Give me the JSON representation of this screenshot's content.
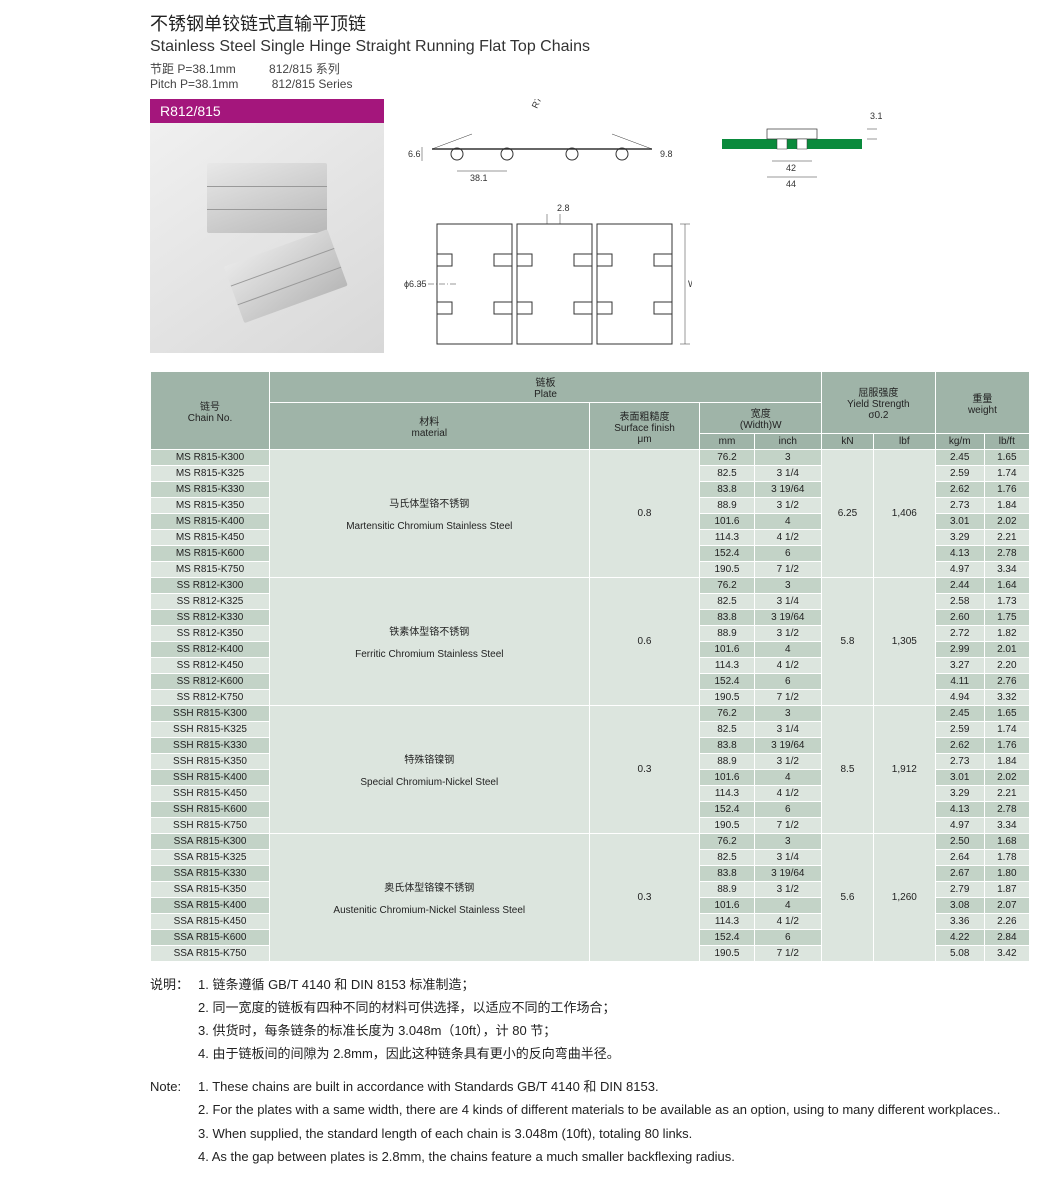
{
  "title_cn": "不锈钢单铰链式直输平顶链",
  "title_en": "Stainless Steel Single Hinge Straight Running Flat Top Chains",
  "subtitle_cn_1": "节距 P=38.1mm",
  "subtitle_cn_2": "812/815 系列",
  "subtitle_en_1": "Pitch P=38.1mm",
  "subtitle_en_2": "812/815 Series",
  "prod_header": "R812/815",
  "dims": {
    "r": "R75max",
    "h": "6.6",
    "p": "38.1",
    "h2": "9.8",
    "gap": "2.8",
    "dia": "ϕ6.35",
    "w": "W",
    "side_t": "3.1",
    "side_w1": "42",
    "side_w2": "44"
  },
  "headers": {
    "chain_cn": "链号",
    "chain_en": "Chain No.",
    "plate_cn": "链板",
    "plate_en": "Plate",
    "mat_cn": "材料",
    "mat_en": "material",
    "surf_cn": "表面粗糙度",
    "surf_en": "Surface finish",
    "surf_u": "μm",
    "width_cn": "宽度",
    "width_en": "(Width)W",
    "mm": "mm",
    "inch": "inch",
    "yield_cn": "屈服强度",
    "yield_en": "Yield Strength",
    "yield_s": "σ0.2",
    "kn": "kN",
    "lbf": "lbf",
    "weight_cn": "重量",
    "weight_en": "weight",
    "kgm": "kg/m",
    "lbft": "lb/ft"
  },
  "groups": [
    {
      "mat_cn": "马氏体型铬不锈钢",
      "mat_en": "Martensitic Chromium Stainless Steel",
      "surf": "0.8",
      "kn": "6.25",
      "lbf": "1,406",
      "rows": [
        {
          "no": "MS R815-K300",
          "mm": "76.2",
          "in": "3",
          "kg": "2.45",
          "lb": "1.65"
        },
        {
          "no": "MS R815-K325",
          "mm": "82.5",
          "in": "3 1/4",
          "kg": "2.59",
          "lb": "1.74"
        },
        {
          "no": "MS R815-K330",
          "mm": "83.8",
          "in": "3 19/64",
          "kg": "2.62",
          "lb": "1.76"
        },
        {
          "no": "MS R815-K350",
          "mm": "88.9",
          "in": "3 1/2",
          "kg": "2.73",
          "lb": "1.84"
        },
        {
          "no": "MS  R815-K400",
          "mm": "101.6",
          "in": "4",
          "kg": "3.01",
          "lb": "2.02"
        },
        {
          "no": "MS R815-K450",
          "mm": "114.3",
          "in": "4 1/2",
          "kg": "3.29",
          "lb": "2.21"
        },
        {
          "no": "MS R815-K600",
          "mm": "152.4",
          "in": "6",
          "kg": "4.13",
          "lb": "2.78"
        },
        {
          "no": "MS R815-K750",
          "mm": "190.5",
          "in": "7 1/2",
          "kg": "4.97",
          "lb": "3.34"
        }
      ]
    },
    {
      "mat_cn": "铁素体型铬不锈钢",
      "mat_en": "Ferritic Chromium Stainless Steel",
      "surf": "0.6",
      "kn": "5.8",
      "lbf": "1,305",
      "rows": [
        {
          "no": "SS R812-K300",
          "mm": "76.2",
          "in": "3",
          "kg": "2.44",
          "lb": "1.64"
        },
        {
          "no": "SS R812-K325",
          "mm": "82.5",
          "in": "3 1/4",
          "kg": "2.58",
          "lb": "1.73"
        },
        {
          "no": "SS R812-K330",
          "mm": "83.8",
          "in": "3 19/64",
          "kg": "2.60",
          "lb": "1.75"
        },
        {
          "no": "SS R812-K350",
          "mm": "88.9",
          "in": "3 1/2",
          "kg": "2.72",
          "lb": "1.82"
        },
        {
          "no": "SS R812-K400",
          "mm": "101.6",
          "in": "4",
          "kg": "2.99",
          "lb": "2.01"
        },
        {
          "no": "SS R812-K450",
          "mm": "114.3",
          "in": "4 1/2",
          "kg": "3.27",
          "lb": "2.20"
        },
        {
          "no": "SS R812-K600",
          "mm": "152.4",
          "in": "6",
          "kg": "4.11",
          "lb": "2.76"
        },
        {
          "no": "SS R812-K750",
          "mm": "190.5",
          "in": "7 1/2",
          "kg": "4.94",
          "lb": "3.32"
        }
      ]
    },
    {
      "mat_cn": "特殊铬镍钢",
      "mat_en": "Special Chromium-Nickel Steel",
      "surf": "0.3",
      "kn": "8.5",
      "lbf": "1,912",
      "rows": [
        {
          "no": "SSH R815-K300",
          "mm": "76.2",
          "in": "3",
          "kg": "2.45",
          "lb": "1.65"
        },
        {
          "no": "SSH R815-K325",
          "mm": "82.5",
          "in": "3 1/4",
          "kg": "2.59",
          "lb": "1.74"
        },
        {
          "no": "SSH R815-K330",
          "mm": "83.8",
          "in": "3 19/64",
          "kg": "2.62",
          "lb": "1.76"
        },
        {
          "no": "SSH R815-K350",
          "mm": "88.9",
          "in": "3 1/2",
          "kg": "2.73",
          "lb": "1.84"
        },
        {
          "no": "SSH R815-K400",
          "mm": "101.6",
          "in": "4",
          "kg": "3.01",
          "lb": "2.02"
        },
        {
          "no": "SSH R815-K450",
          "mm": "114.3",
          "in": "4 1/2",
          "kg": "3.29",
          "lb": "2.21"
        },
        {
          "no": "SSH R815-K600",
          "mm": "152.4",
          "in": "6",
          "kg": "4.13",
          "lb": "2.78"
        },
        {
          "no": "SSH R815-K750",
          "mm": "190.5",
          "in": "7 1/2",
          "kg": "4.97",
          "lb": "3.34"
        }
      ]
    },
    {
      "mat_cn": "奥氏体型铬镍不锈钢",
      "mat_en": "Austenitic Chromium-Nickel Stainless Steel",
      "surf": "0.3",
      "kn": "5.6",
      "lbf": "1,260",
      "rows": [
        {
          "no": "SSA R815-K300",
          "mm": "76.2",
          "in": "3",
          "kg": "2.50",
          "lb": "1.68"
        },
        {
          "no": "SSA R815-K325",
          "mm": "82.5",
          "in": "3 1/4",
          "kg": "2.64",
          "lb": "1.78"
        },
        {
          "no": "SSA R815-K330",
          "mm": "83.8",
          "in": "3 19/64",
          "kg": "2.67",
          "lb": "1.80"
        },
        {
          "no": "SSA R815-K350",
          "mm": "88.9",
          "in": "3 1/2",
          "kg": "2.79",
          "lb": "1.87"
        },
        {
          "no": "SSA R815-K400",
          "mm": "101.6",
          "in": "4",
          "kg": "3.08",
          "lb": "2.07"
        },
        {
          "no": "SSA R815-K450",
          "mm": "114.3",
          "in": "4 1/2",
          "kg": "3.36",
          "lb": "2.26"
        },
        {
          "no": "SSA R815-K600",
          "mm": "152.4",
          "in": "6",
          "kg": "4.22",
          "lb": "2.84"
        },
        {
          "no": "SSA R815-K750",
          "mm": "190.5",
          "in": "7 1/2",
          "kg": "5.08",
          "lb": "3.42"
        }
      ]
    }
  ],
  "notes_cn_lbl": "说明：",
  "notes_cn": [
    "1. 链条遵循 GB/T 4140 和 DIN 8153 标准制造；",
    "2. 同一宽度的链板有四种不同的材料可供选择，以适应不同的工作场合；",
    "3. 供货时，每条链条的标准长度为 3.048m（10ft），计 80 节；",
    "4. 由于链板间的间隙为 2.8mm，因此这种链条具有更小的反向弯曲半径。"
  ],
  "notes_en_lbl": "Note:",
  "notes_en": [
    "1. These chains are built in accordance with Standards GB/T 4140 和 DIN 8153.",
    "2. For the plates with a same width, there are 4 kinds of different materials to be available as an option, using to many different workplaces..",
    "3. When supplied, the standard length of each chain is 3.048m (10ft), totaling 80 links.",
    "4. As the gap between plates is 2.8mm, the chains feature a much smaller backflexing radius."
  ],
  "colors": {
    "header_bg": "#9fb4a8",
    "row_even": "#dce5de",
    "row_odd": "#c3d3c7",
    "accent": "#a4167c",
    "green": "#0a8a3c"
  }
}
